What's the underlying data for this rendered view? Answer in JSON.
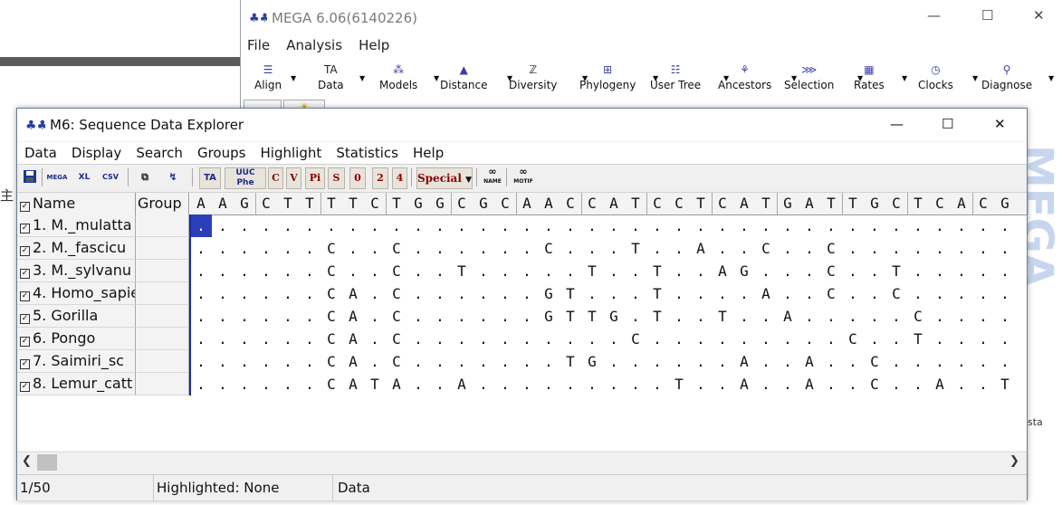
{
  "mega": {
    "title": "MEGA 6.06(6140226)",
    "menu": [
      "File",
      "Analysis",
      "Help"
    ],
    "toolbar": [
      "Align",
      "Data",
      "Models",
      "Distance",
      "Diversity",
      "Phylogeny",
      "User Tree",
      "Ancestors",
      "Selection",
      "Rates",
      "Clocks",
      "Diagnose"
    ],
    "icons": [
      "align-icon",
      "data-icon",
      "models-icon",
      "distance-icon",
      "diversity-icon",
      "phylogeny-icon",
      "user-tree-icon",
      "ancestors-icon",
      "selection-icon",
      "rates-icon",
      "clocks-icon",
      "diagnose-icon"
    ]
  },
  "background": {
    "left_char": "主",
    "right_logo": "MEGA",
    "right_text": "sta"
  },
  "explorer": {
    "title": "M6: Sequence Data Explorer",
    "menu": [
      "Data",
      "Display",
      "Search",
      "Groups",
      "Highlight",
      "Statistics",
      "Help"
    ],
    "toolbar": {
      "buttons": [
        "save-icon",
        "export-mega-icon",
        "export-xl-icon",
        "export-csv-icon",
        "copy-icon",
        "translate-icon",
        "ta-icon",
        "uuc-phe-icon"
      ],
      "highlight_buttons": [
        "C",
        "V",
        "Pi",
        "S",
        "0",
        "2",
        "4"
      ],
      "special_label": "Special",
      "find_icons": [
        "find-name-icon",
        "find-motif-icon"
      ],
      "icon_text": {
        "mega": "MEGA",
        "xl": "XL",
        "csv": "CSV",
        "ta": "TA",
        "uuc": "UUC",
        "phe": "Phe",
        "name": "NAME",
        "motif": "MOTIF"
      }
    },
    "columns": {
      "name": "Name",
      "group": "Group"
    },
    "header_sequence": "AAGCTTTTCTGGCGCAACCATCCTCATGATTGCTCACG",
    "rows": [
      {
        "name": "1. M._mulatta",
        "seq": "......................................"
      },
      {
        "name": "2. M._fascicu",
        "seq": "......C..C......C...T..A..C..C........"
      },
      {
        "name": "3. M._sylvanu",
        "seq": "......C..C..T.....T..T..AG...C..T....."
      },
      {
        "name": "4. Homo_sapie",
        "seq": "......CA.C......GT...T....A..C..C....."
      },
      {
        "name": "5. Gorilla",
        "seq": "......CA.C......GTTG.T..T..A.....C....."
      },
      {
        "name": "6. Pongo",
        "seq": "......CA.C..........C.........C..T...."
      },
      {
        "name": "7. Saimiri_sc",
        "seq": "......CA.C.......TG......A..A..C......."
      },
      {
        "name": "8. Lemur_catt",
        "seq": "......CATA..A.........T..A..A..C..A..T"
      }
    ],
    "status": {
      "position": "1/50",
      "highlighted": "Highlighted: None",
      "mode": "Data"
    }
  }
}
